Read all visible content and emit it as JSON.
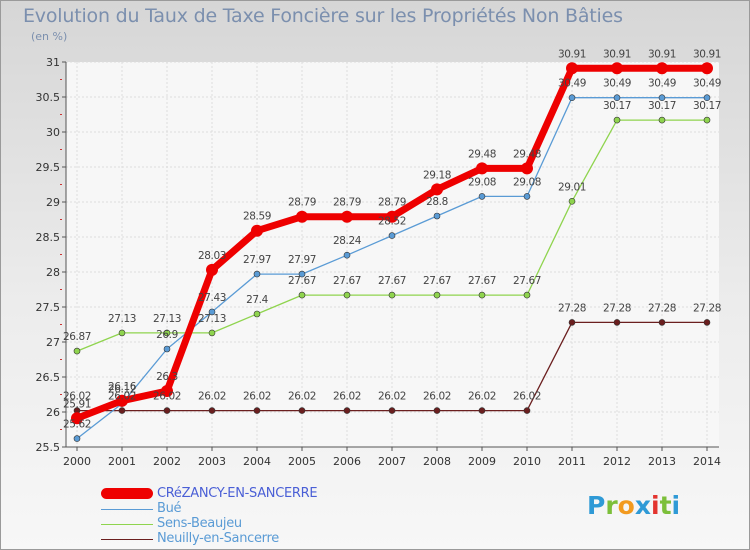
{
  "title": "Evolution du Taux de Taxe Foncière sur les Propriétés Non Bâties",
  "unit_label": "(en %)",
  "logo": {
    "letters": [
      "P",
      "r",
      "o",
      "x",
      "i",
      "t",
      "i"
    ],
    "colors": [
      "#2f9ad6",
      "#7cbf3a",
      "#f29a1f",
      "#2f9ad6",
      "#e3342f",
      "#7cbf3a",
      "#2f9ad6"
    ]
  },
  "chart_data": {
    "type": "line",
    "title": "Evolution du Taux de Taxe Foncière sur les Propriétés Non Bâties",
    "ylabel": "(en %)",
    "xlabel": "",
    "categories": [
      "2000",
      "2001",
      "2002",
      "2003",
      "2004",
      "2005",
      "2006",
      "2007",
      "2008",
      "2009",
      "2010",
      "2011",
      "2012",
      "2013",
      "2014"
    ],
    "ylim": [
      25.5,
      31
    ],
    "yticks": [
      "25.5",
      "26",
      "26.5",
      "27",
      "27.5",
      "28",
      "28.5",
      "29",
      "29.5",
      "30",
      "30.5",
      "31"
    ],
    "grid": true,
    "legend_position": "bottom-left",
    "series": [
      {
        "name": "CRéZANCY-EN-SANCERRE",
        "color": "#ee0000",
        "values": [
          25.91,
          26.16,
          26.3,
          28.03,
          28.59,
          28.79,
          28.79,
          28.79,
          29.18,
          29.48,
          29.48,
          30.91,
          30.91,
          30.91,
          30.91
        ],
        "labels": [
          "25.91",
          "26.16",
          "26.3",
          "28.03",
          "28.59",
          "28.79",
          "28.79",
          "28.79",
          "29.18",
          "29.48",
          "29.48",
          "30.91",
          "30.91",
          "30.91",
          "30.91"
        ]
      },
      {
        "name": "Bué",
        "color": "#5a9bd5",
        "values": [
          25.62,
          26.12,
          26.9,
          27.43,
          27.97,
          27.97,
          28.24,
          28.52,
          28.8,
          29.08,
          29.08,
          30.49,
          30.49,
          30.49,
          30.49
        ],
        "labels": [
          "25.62",
          "26.12",
          "26.9",
          "27.43",
          "27.97",
          "27.97",
          "28.24",
          "28.52",
          "28.8",
          "29.08",
          "29.08",
          "30.49",
          "30.49",
          "30.49",
          "30.49"
        ]
      },
      {
        "name": "Sens-Beaujeu",
        "color": "#8fd44e",
        "values": [
          26.87,
          27.13,
          27.13,
          27.13,
          27.4,
          27.67,
          27.67,
          27.67,
          27.67,
          27.67,
          27.67,
          29.01,
          30.17,
          30.17,
          30.17
        ],
        "labels": [
          "26.87",
          "27.13",
          "27.13",
          "27.13",
          "27.4",
          "27.67",
          "27.67",
          "27.67",
          "27.67",
          "27.67",
          "27.67",
          "29.01",
          "30.17",
          "30.17",
          "30.17"
        ]
      },
      {
        "name": "Neuilly-en-Sancerre",
        "color": "#6b1f1f",
        "values": [
          26.02,
          26.02,
          26.02,
          26.02,
          26.02,
          26.02,
          26.02,
          26.02,
          26.02,
          26.02,
          26.02,
          27.28,
          27.28,
          27.28,
          27.28
        ],
        "labels": [
          "26.02",
          "26.02",
          "26.02",
          "26.02",
          "26.02",
          "26.02",
          "26.02",
          "26.02",
          "26.02",
          "26.02",
          "26.02",
          "27.28",
          "27.28",
          "27.28",
          "27.28"
        ]
      }
    ]
  }
}
